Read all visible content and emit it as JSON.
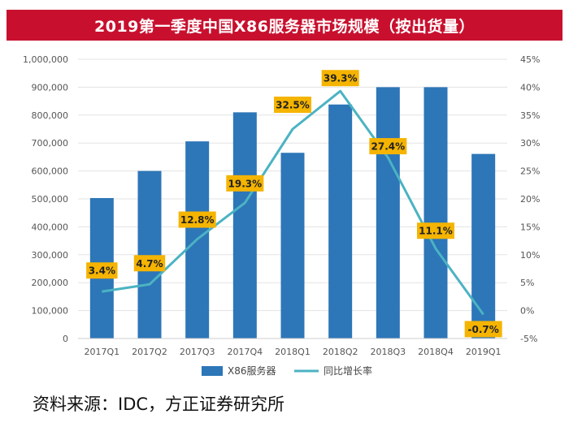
{
  "chart_data": {
    "type": "bar+line",
    "title": "2019第一季度中国X86服务器市场规模（按出货量）",
    "categories": [
      "2017Q1",
      "2017Q2",
      "2017Q3",
      "2017Q4",
      "2018Q1",
      "2018Q2",
      "2018Q3",
      "2018Q4",
      "2019Q1"
    ],
    "series": [
      {
        "name": "X86服务器",
        "type": "bar",
        "axis": "left",
        "color": "#2d76b8",
        "values": [
          503000,
          600000,
          706000,
          810000,
          665000,
          838000,
          900000,
          900000,
          661000
        ]
      },
      {
        "name": "同比增长率",
        "type": "line",
        "axis": "right",
        "color": "#4bb3c3",
        "values": [
          3.4,
          4.7,
          12.8,
          19.3,
          32.5,
          39.3,
          27.4,
          11.1,
          -0.7
        ],
        "labels": [
          "3.4%",
          "4.7%",
          "12.8%",
          "19.3%",
          "32.5%",
          "39.3%",
          "27.4%",
          "11.1%",
          "-0.7%"
        ]
      }
    ],
    "y_left": {
      "min": 0,
      "max": 1000000,
      "ticks": [
        0,
        100000,
        200000,
        300000,
        400000,
        500000,
        600000,
        700000,
        800000,
        900000,
        1000000
      ],
      "tick_labels": [
        "0",
        "100,000",
        "200,000",
        "300,000",
        "400,000",
        "500,000",
        "600,000",
        "700,000",
        "800,000",
        "900,000",
        "1,000,000"
      ]
    },
    "y_right": {
      "min": -5,
      "max": 45,
      "ticks": [
        -5,
        0,
        5,
        10,
        15,
        20,
        25,
        30,
        35,
        40,
        45
      ],
      "tick_labels": [
        "-5%",
        "0%",
        "5%",
        "10%",
        "15%",
        "20%",
        "25%",
        "30%",
        "35%",
        "40%",
        "45%"
      ]
    },
    "label_color": "#f5b400",
    "legend": {
      "placement": "bottom"
    }
  },
  "source": "资料来源：IDC，方正证券研究所"
}
